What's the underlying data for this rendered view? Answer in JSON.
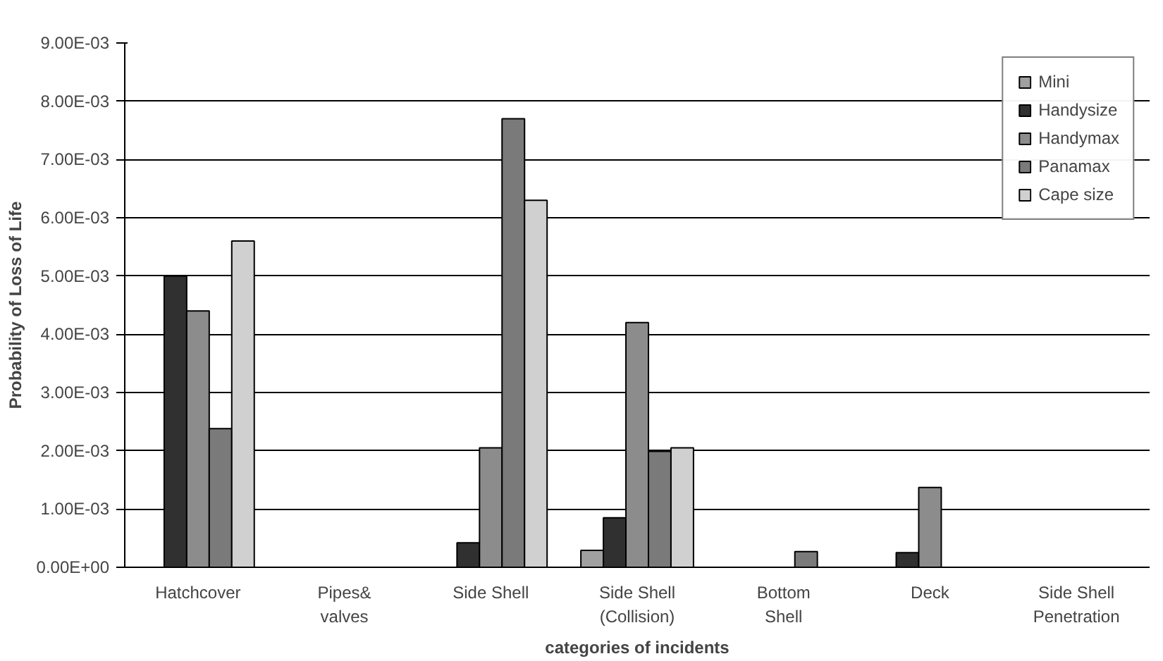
{
  "chart_data": {
    "type": "bar",
    "xlabel": "categories of incidents",
    "ylabel": "Probability of Loss of Life",
    "categories": [
      "Hatchcover",
      "Pipes&\nvalves",
      "Side Shell",
      "Side Shell\n(Collision)",
      "Bottom\nShell",
      "Deck",
      "Side Shell\nPenetration"
    ],
    "series": [
      {
        "name": "Mini",
        "color": "#a0a0a0",
        "values": [
          null,
          null,
          null,
          0.00029,
          null,
          null,
          null
        ]
      },
      {
        "name": "Handysize",
        "color": "#303030",
        "values": [
          0.005,
          null,
          0.00042,
          0.00085,
          null,
          0.00025,
          null
        ]
      },
      {
        "name": "Handymax",
        "color": "#8c8c8c",
        "values": [
          0.0044,
          null,
          0.00205,
          0.0042,
          null,
          0.00137,
          null
        ]
      },
      {
        "name": "Panamax",
        "color": "#7a7a7a",
        "values": [
          0.00238,
          null,
          0.0077,
          0.00199,
          0.00027,
          null,
          null
        ]
      },
      {
        "name": "Cape size",
        "color": "#d0d0d0",
        "values": [
          0.0056,
          null,
          0.0063,
          0.00205,
          null,
          null,
          null
        ]
      }
    ],
    "ylim": [
      0,
      0.009
    ],
    "yticks": [
      {
        "value": 0,
        "label": "0.00E+00"
      },
      {
        "value": 0.001,
        "label": "1.00E-03"
      },
      {
        "value": 0.002,
        "label": "2.00E-03"
      },
      {
        "value": 0.003,
        "label": "3.00E-03"
      },
      {
        "value": 0.004,
        "label": "4.00E-03"
      },
      {
        "value": 0.005,
        "label": "5.00E-03"
      },
      {
        "value": 0.006,
        "label": "6.00E-03"
      },
      {
        "value": 0.007,
        "label": "7.00E-03"
      },
      {
        "value": 0.008,
        "label": "8.00E-03"
      },
      {
        "value": 0.009,
        "label": "9.00E-03"
      }
    ],
    "grid": "y",
    "legend": "top right"
  }
}
